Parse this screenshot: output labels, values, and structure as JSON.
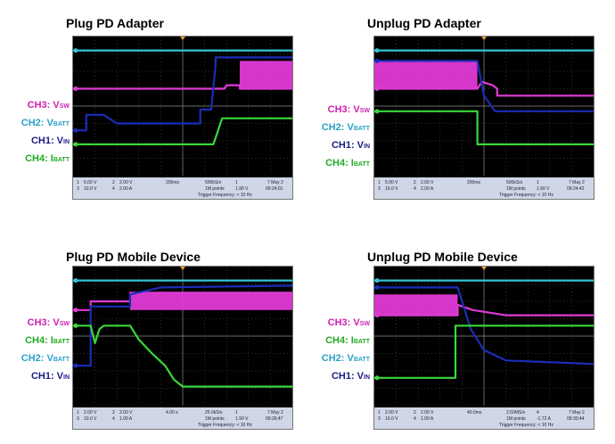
{
  "colors": {
    "ch1": "#1a2db8",
    "ch2": "#33c4d6",
    "ch3": "#e03ad6",
    "ch4": "#3ad83a",
    "label_ch1": "#1a1a80",
    "label_ch2": "#2aa0c8",
    "label_ch3": "#d020b0",
    "label_ch4": "#22aa22",
    "grid": "#5a5a5a",
    "screen": "#000000",
    "statusbar": "#cfd6e6"
  },
  "panels": [
    {
      "title": "Plug PD Adapter",
      "labels": [
        {
          "key": "ch3",
          "name": "CH3: V",
          "sub": "SW"
        },
        {
          "key": "ch2",
          "name": "CH2: V",
          "sub": "BATT"
        },
        {
          "key": "ch1",
          "name": "CH1: V",
          "sub": "IN"
        },
        {
          "key": "ch4",
          "name": "CH4: I",
          "sub": "BATT"
        }
      ],
      "status": {
        "row1": [
          "1",
          "5.00 V",
          "2",
          "2.00 V",
          "200ms",
          "500kS/s",
          "1",
          "7 May 2"
        ],
        "row2": [
          "3",
          "10.0 V",
          "4",
          "2.00 A",
          "1M points",
          "1.90 V",
          "09:24:01"
        ],
        "row3": "Trigger Frequency: < 10 Hz"
      }
    },
    {
      "title": "Unplug PD Adapter",
      "labels": [
        {
          "key": "ch3",
          "name": "CH3: V",
          "sub": "SW"
        },
        {
          "key": "ch2",
          "name": "CH2: V",
          "sub": "BATT"
        },
        {
          "key": "ch1",
          "name": "CH1: V",
          "sub": "IN"
        },
        {
          "key": "ch4",
          "name": "CH4: I",
          "sub": "BATT"
        }
      ],
      "status": {
        "row1": [
          "1",
          "5.00 V",
          "2",
          "2.00 V",
          "200ms",
          "500kS/s",
          "1",
          "7 May 2"
        ],
        "row2": [
          "3",
          "10.0 V",
          "4",
          "2.00 A",
          "1M points",
          "1.90 V",
          "09:24:42"
        ],
        "row3": "Trigger Frequency: < 10 Hz"
      }
    },
    {
      "title": "Plug PD Mobile Device",
      "labels": [
        {
          "key": "ch3",
          "name": "CH3: V",
          "sub": "SW"
        },
        {
          "key": "ch4",
          "name": "CH4: I",
          "sub": "BATT"
        },
        {
          "key": "ch2",
          "name": "CH2: V",
          "sub": "BATT"
        },
        {
          "key": "ch1",
          "name": "CH1: V",
          "sub": "IN"
        }
      ],
      "status": {
        "row1": [
          "1",
          "2.00 V",
          "2",
          "2.00 V",
          "4.00 s",
          "25.0kS/s",
          "1",
          "7 May 2"
        ],
        "row2": [
          "3",
          "10.0 V",
          "4",
          "1.00 A",
          "1M points",
          "1.90 V",
          "09:26:47"
        ],
        "row3": "Trigger Frequency: < 10 Hz"
      }
    },
    {
      "title": "Unplug PD Mobile Device",
      "labels": [
        {
          "key": "ch3",
          "name": "CH3: V",
          "sub": "SW"
        },
        {
          "key": "ch4",
          "name": "CH4: I",
          "sub": "BATT"
        },
        {
          "key": "ch2",
          "name": "CH2: V",
          "sub": "BATT"
        },
        {
          "key": "ch1",
          "name": "CH1: V",
          "sub": "IN"
        }
      ],
      "status": {
        "row1": [
          "1",
          "2.00 V",
          "2",
          "2.00 V",
          "40.0ms",
          "2.50MS/s",
          "4",
          "7 May 2"
        ],
        "row2": [
          "3",
          "10.0 V",
          "4",
          "1.00 A",
          "1M points",
          "-1.72 A",
          "09:30:44"
        ],
        "row3": "Trigger Frequency: < 10 Hz"
      }
    }
  ],
  "chart_data": [
    {
      "type": "line",
      "title": "Plug PD Adapter",
      "x_divisions": 10,
      "y_divisions": 8,
      "series": [
        {
          "name": "CH2: VBATT",
          "key": "ch2",
          "x": [
            0,
            10
          ],
          "y": [
            7.2,
            7.2
          ]
        },
        {
          "name": "CH3: VSW",
          "key": "ch3",
          "x": [
            0,
            6.9,
            7.0,
            7.6,
            7.6,
            10
          ],
          "y": [
            5.0,
            5.0,
            5.2,
            5.2,
            5.0,
            5.0
          ],
          "band": {
            "x0": 7.6,
            "x1": 10,
            "y0": 5.0,
            "y1": 6.6
          }
        },
        {
          "name": "CH1: VIN",
          "key": "ch1",
          "x": [
            0,
            0.6,
            0.6,
            1.4,
            2.0,
            5.8,
            5.8,
            6.3,
            6.5,
            6.5,
            10
          ],
          "y": [
            2.6,
            2.6,
            3.5,
            3.5,
            3.0,
            3.0,
            3.8,
            3.8,
            6.4,
            6.8,
            6.8
          ]
        },
        {
          "name": "CH4: IBATT",
          "key": "ch4",
          "x": [
            0,
            6.4,
            6.8,
            10
          ],
          "y": [
            1.8,
            1.8,
            3.3,
            3.3
          ]
        }
      ]
    },
    {
      "title": "Unplug PD Adapter",
      "type": "line",
      "x_divisions": 10,
      "y_divisions": 8,
      "series": [
        {
          "name": "CH2: VBATT",
          "key": "ch2",
          "x": [
            0,
            10
          ],
          "y": [
            7.2,
            7.2
          ]
        },
        {
          "name": "CH3: VSW",
          "key": "ch3",
          "x": [
            0,
            4.7,
            4.9,
            5.4,
            5.6,
            5.6,
            10
          ],
          "y": [
            5.0,
            5.0,
            5.4,
            5.2,
            5.0,
            4.6,
            4.6
          ],
          "band": {
            "x0": 0,
            "x1": 4.7,
            "y0": 5.0,
            "y1": 6.6
          }
        },
        {
          "name": "CH1: VIN",
          "key": "ch1",
          "x": [
            0,
            4.7,
            5.0,
            5.5,
            10
          ],
          "y": [
            6.6,
            6.6,
            4.6,
            3.7,
            3.7
          ]
        },
        {
          "name": "CH4: IBATT",
          "key": "ch4",
          "x": [
            0,
            4.7,
            4.7,
            10
          ],
          "y": [
            3.7,
            3.7,
            1.8,
            1.8
          ]
        }
      ]
    },
    {
      "title": "Plug PD Mobile Device",
      "type": "line",
      "x_divisions": 10,
      "y_divisions": 8,
      "series": [
        {
          "name": "CH2: VBATT",
          "key": "ch2",
          "x": [
            0,
            10
          ],
          "y": [
            7.2,
            7.2
          ]
        },
        {
          "name": "CH3: VSW",
          "key": "ch3",
          "x": [
            0,
            0.8,
            0.8,
            2.6,
            2.6,
            10
          ],
          "y": [
            5.5,
            5.5,
            6.0,
            6.0,
            6.5,
            6.5
          ],
          "band": {
            "x0": 2.6,
            "x1": 10,
            "y0": 5.5,
            "y1": 6.5
          }
        },
        {
          "name": "CH1: VIN",
          "key": "ch1",
          "x": [
            0,
            0.8,
            0.8,
            2.6,
            2.6,
            4.0,
            10
          ],
          "y": [
            2.3,
            2.3,
            5.7,
            5.7,
            6.4,
            6.8,
            6.9
          ]
        },
        {
          "name": "CH4: IBATT",
          "key": "ch4",
          "x": [
            0,
            0.8,
            1.0,
            1.2,
            1.4,
            1.8,
            2.6,
            3.0,
            3.6,
            4.2,
            4.6,
            5.0,
            10
          ],
          "y": [
            4.6,
            4.6,
            3.6,
            4.4,
            4.6,
            4.6,
            4.6,
            3.8,
            3.0,
            2.3,
            1.5,
            1.1,
            1.1
          ]
        }
      ]
    },
    {
      "title": "Unplug PD Mobile Device",
      "type": "line",
      "x_divisions": 10,
      "y_divisions": 8,
      "series": [
        {
          "name": "CH2: VBATT",
          "key": "ch2",
          "x": [
            0,
            10
          ],
          "y": [
            7.2,
            7.2
          ]
        },
        {
          "name": "CH3: VSW",
          "key": "ch3",
          "x": [
            0,
            3.8,
            3.8,
            4.5,
            6.0,
            10
          ],
          "y": [
            5.2,
            5.2,
            5.8,
            5.5,
            5.2,
            5.2
          ],
          "band": {
            "x0": 0,
            "x1": 3.8,
            "y0": 5.2,
            "y1": 6.4
          }
        },
        {
          "name": "CH1: VIN",
          "key": "ch1",
          "x": [
            0,
            3.8,
            4.4,
            5.0,
            6.0,
            10
          ],
          "y": [
            6.8,
            6.8,
            4.4,
            3.2,
            2.6,
            2.4
          ]
        },
        {
          "name": "CH4: IBATT",
          "key": "ch4",
          "x": [
            0,
            3.7,
            3.7,
            10
          ],
          "y": [
            1.6,
            1.6,
            4.6,
            4.6
          ]
        }
      ]
    }
  ]
}
